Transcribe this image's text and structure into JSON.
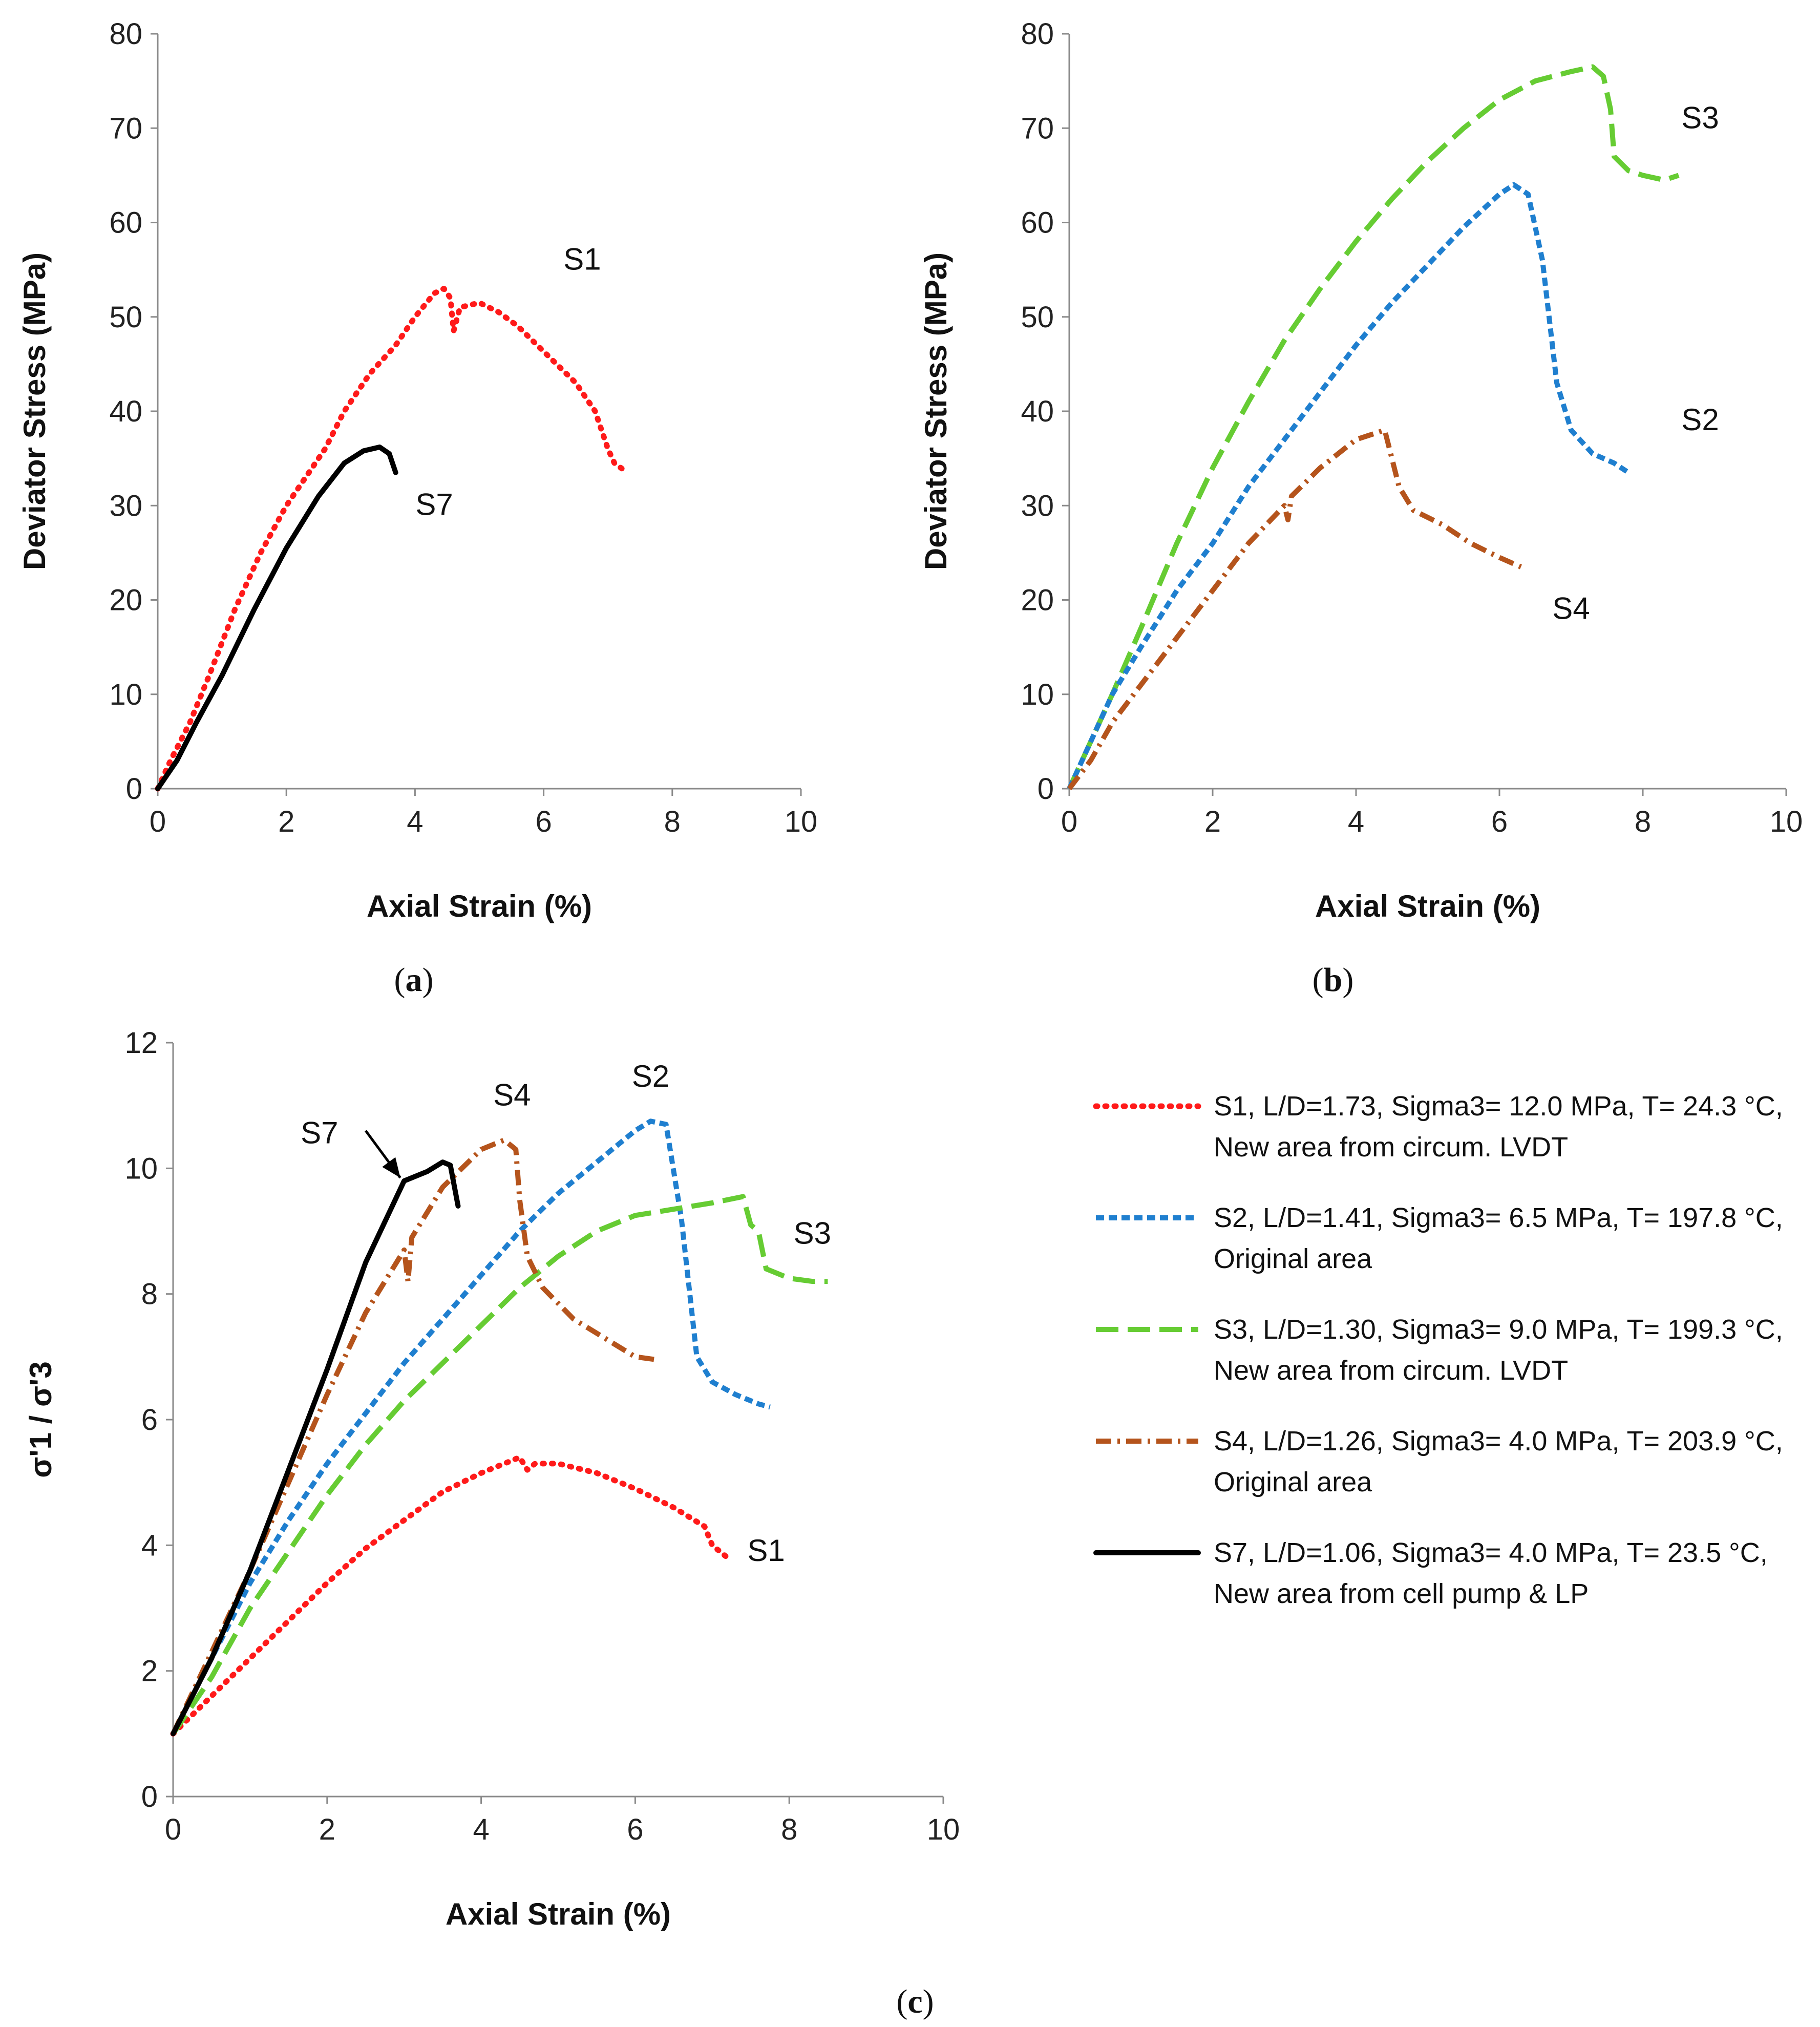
{
  "figure": {
    "panel_labels": [
      {
        "open": "(",
        "letter": "a",
        "close": ")"
      },
      {
        "open": "(",
        "letter": "b",
        "close": ")"
      },
      {
        "open": "(",
        "letter": "c",
        "close": ")"
      }
    ]
  },
  "colors": {
    "S1": "#ff1a1a",
    "S2": "#1f7fcf",
    "S3": "#66cc33",
    "S4": "#b5541c",
    "S7": "#000000"
  },
  "legend": [
    {
      "id": "S1",
      "style": "dotted",
      "line1": "S1, L/D=1.73, Sigma3= 12.0 MPa, T= 24.3 °C,",
      "line2": "New area from circum. LVDT"
    },
    {
      "id": "S2",
      "style": "short-dash",
      "line1": "S2, L/D=1.41, Sigma3= 6.5 MPa, T= 197.8 °C,",
      "line2": "Original area"
    },
    {
      "id": "S3",
      "style": "long-dash",
      "line1": "S3, L/D=1.30, Sigma3= 9.0 MPa, T= 199.3 °C,",
      "line2": "New area from circum. LVDT"
    },
    {
      "id": "S4",
      "style": "dash-dot",
      "line1": "S4, L/D=1.26, Sigma3= 4.0 MPa, T= 203.9 °C,",
      "line2": "Original area"
    },
    {
      "id": "S7",
      "style": "solid",
      "line1": "S7, L/D=1.06, Sigma3= 4.0 MPa, T= 23.5 °C,",
      "line2": "New area from cell pump & LP"
    }
  ],
  "chart_data": [
    {
      "panel": "a",
      "type": "line",
      "xlabel": "Axial Strain (%)",
      "ylabel": "Deviator Stress (MPa)",
      "xlim": [
        0,
        10
      ],
      "ylim": [
        0,
        80
      ],
      "xticks": [
        "0",
        "2",
        "4",
        "6",
        "8",
        "10"
      ],
      "yticks": [
        "0",
        "10",
        "20",
        "30",
        "40",
        "50",
        "60",
        "70",
        "80"
      ],
      "annotations": [
        {
          "text": "S1",
          "x": 6.6,
          "y": 55
        },
        {
          "text": "S7",
          "x": 4.3,
          "y": 29
        }
      ],
      "series": [
        {
          "name": "S1",
          "x": [
            0,
            0.2,
            0.5,
            0.8,
            1.2,
            1.6,
            2.0,
            2.4,
            2.6,
            2.9,
            3.3,
            3.7,
            4.0,
            4.3,
            4.45,
            4.55,
            4.6,
            4.7,
            5.0,
            5.3,
            5.6,
            5.9,
            6.2,
            6.5,
            6.8,
            7.0,
            7.1,
            7.3
          ],
          "y": [
            0,
            3,
            7,
            12,
            19,
            25,
            30,
            34,
            36,
            40,
            44,
            47,
            50,
            52.5,
            53,
            52,
            48.5,
            51,
            51.5,
            50.5,
            49,
            47,
            45,
            43,
            40,
            36,
            34.5,
            33.5
          ]
        },
        {
          "name": "S7",
          "x": [
            0,
            0.3,
            0.6,
            1.0,
            1.5,
            2.0,
            2.5,
            2.9,
            3.2,
            3.45,
            3.6,
            3.7
          ],
          "y": [
            0,
            3,
            7,
            12,
            19,
            25.5,
            31,
            34.5,
            35.8,
            36.2,
            35.5,
            33.5
          ]
        }
      ]
    },
    {
      "panel": "b",
      "type": "line",
      "xlabel": "Axial Strain (%)",
      "ylabel": "Deviator Stress (MPa)",
      "xlim": [
        0,
        10
      ],
      "ylim": [
        0,
        80
      ],
      "xticks": [
        "0",
        "2",
        "4",
        "6",
        "8",
        "10"
      ],
      "yticks": [
        "0",
        "10",
        "20",
        "30",
        "40",
        "50",
        "60",
        "70",
        "80"
      ],
      "annotations": [
        {
          "text": "S3",
          "x": 8.8,
          "y": 70
        },
        {
          "text": "S2",
          "x": 8.8,
          "y": 38
        },
        {
          "text": "S4",
          "x": 7.0,
          "y": 18
        }
      ],
      "series": [
        {
          "name": "S3",
          "x": [
            0,
            0.3,
            0.6,
            1.0,
            1.5,
            2.0,
            2.5,
            3.0,
            3.5,
            4.0,
            4.5,
            5.0,
            5.5,
            6.0,
            6.5,
            7.0,
            7.3,
            7.45,
            7.55,
            7.6,
            7.8,
            8.0,
            8.3,
            8.5
          ],
          "y": [
            0,
            5,
            10,
            17,
            26,
            34,
            41,
            47.5,
            53,
            58,
            62.5,
            66.5,
            70,
            73,
            75,
            76,
            76.5,
            75.5,
            72,
            67,
            65.5,
            65,
            64.5,
            65
          ]
        },
        {
          "name": "S2",
          "x": [
            0,
            0.3,
            0.6,
            1.0,
            1.5,
            2.0,
            2.5,
            3.0,
            3.5,
            4.0,
            4.5,
            5.0,
            5.5,
            6.0,
            6.2,
            6.4,
            6.6,
            6.8,
            7.0,
            7.3,
            7.6,
            7.8
          ],
          "y": [
            0,
            5,
            10,
            15,
            21,
            26,
            32,
            37,
            42,
            47,
            51.5,
            55.5,
            59.5,
            63,
            64,
            63,
            56,
            43,
            38,
            35.5,
            34.5,
            33.5
          ]
        },
        {
          "name": "S4",
          "x": [
            0,
            0.3,
            0.6,
            1.0,
            1.5,
            2.0,
            2.5,
            3.0,
            3.05,
            3.1,
            3.5,
            4.0,
            4.4,
            4.5,
            4.6,
            4.8,
            5.2,
            5.6,
            6.0,
            6.3
          ],
          "y": [
            0,
            3,
            7,
            11,
            16,
            21,
            26,
            30,
            28.5,
            31,
            34,
            37,
            38,
            35,
            32,
            29.5,
            28,
            26,
            24.5,
            23.5
          ]
        }
      ]
    },
    {
      "panel": "c",
      "type": "line",
      "xlabel": "Axial Strain (%)",
      "ylabel": "σ'1 / σ'3",
      "xlim": [
        0,
        10
      ],
      "ylim": [
        0,
        12
      ],
      "xticks": [
        "0",
        "2",
        "4",
        "6",
        "8",
        "10"
      ],
      "yticks": [
        "0",
        "2",
        "4",
        "6",
        "8",
        "10",
        "12"
      ],
      "annotations": [
        {
          "text": "S7",
          "x": 1.9,
          "y": 10.4
        },
        {
          "text": "S4",
          "x": 4.4,
          "y": 11.0
        },
        {
          "text": "S2",
          "x": 6.2,
          "y": 11.3
        },
        {
          "text": "S3",
          "x": 8.3,
          "y": 8.8
        },
        {
          "text": "S1",
          "x": 7.7,
          "y": 3.75
        }
      ],
      "arrow": {
        "from": [
          2.5,
          10.6
        ],
        "to": [
          2.95,
          9.85
        ],
        "label": "S7"
      },
      "series": [
        {
          "name": "S1",
          "x": [
            0,
            0.5,
            1.0,
            1.5,
            2.0,
            2.5,
            3.0,
            3.5,
            4.0,
            4.5,
            4.6,
            4.7,
            5.0,
            5.5,
            6.0,
            6.5,
            6.9,
            7.0,
            7.2
          ],
          "y": [
            1,
            1.6,
            2.2,
            2.8,
            3.4,
            3.95,
            4.4,
            4.85,
            5.15,
            5.4,
            5.2,
            5.3,
            5.3,
            5.15,
            4.9,
            4.6,
            4.3,
            4.0,
            3.8
          ]
        },
        {
          "name": "S2",
          "x": [
            0,
            0.5,
            1.0,
            1.5,
            2.0,
            2.5,
            3.0,
            3.5,
            4.0,
            4.5,
            5.0,
            5.5,
            6.0,
            6.2,
            6.4,
            6.6,
            6.8,
            7.0,
            7.3,
            7.6,
            7.75
          ],
          "y": [
            1,
            2.2,
            3.4,
            4.4,
            5.3,
            6.1,
            6.9,
            7.6,
            8.3,
            9.0,
            9.6,
            10.1,
            10.6,
            10.75,
            10.7,
            9.2,
            7.0,
            6.6,
            6.4,
            6.25,
            6.2
          ]
        },
        {
          "name": "S3",
          "x": [
            0,
            0.5,
            1.0,
            1.5,
            2.0,
            2.5,
            3.0,
            3.5,
            4.0,
            4.5,
            5.0,
            5.5,
            6.0,
            6.5,
            7.0,
            7.4,
            7.5,
            7.6,
            7.7,
            8.0,
            8.3,
            8.5
          ],
          "y": [
            1,
            1.9,
            3.0,
            3.9,
            4.8,
            5.6,
            6.3,
            6.9,
            7.5,
            8.1,
            8.6,
            9.0,
            9.25,
            9.35,
            9.45,
            9.55,
            9.1,
            9.0,
            8.4,
            8.25,
            8.2,
            8.2
          ]
        },
        {
          "name": "S4",
          "x": [
            0,
            0.5,
            1.0,
            1.5,
            2.0,
            2.5,
            3.0,
            3.05,
            3.1,
            3.5,
            4.0,
            4.3,
            4.45,
            4.5,
            4.6,
            4.8,
            5.2,
            5.6,
            6.0,
            6.3
          ],
          "y": [
            1,
            2.3,
            3.6,
            5.0,
            6.4,
            7.7,
            8.7,
            8.2,
            8.9,
            9.7,
            10.3,
            10.45,
            10.3,
            9.5,
            8.6,
            8.1,
            7.6,
            7.3,
            7.0,
            6.95
          ]
        },
        {
          "name": "S7",
          "x": [
            0,
            0.5,
            1.0,
            1.5,
            2.0,
            2.5,
            3.0,
            3.3,
            3.5,
            3.6,
            3.7
          ],
          "y": [
            1,
            2.2,
            3.6,
            5.2,
            6.8,
            8.5,
            9.8,
            9.95,
            10.1,
            10.05,
            9.4
          ]
        }
      ]
    }
  ]
}
